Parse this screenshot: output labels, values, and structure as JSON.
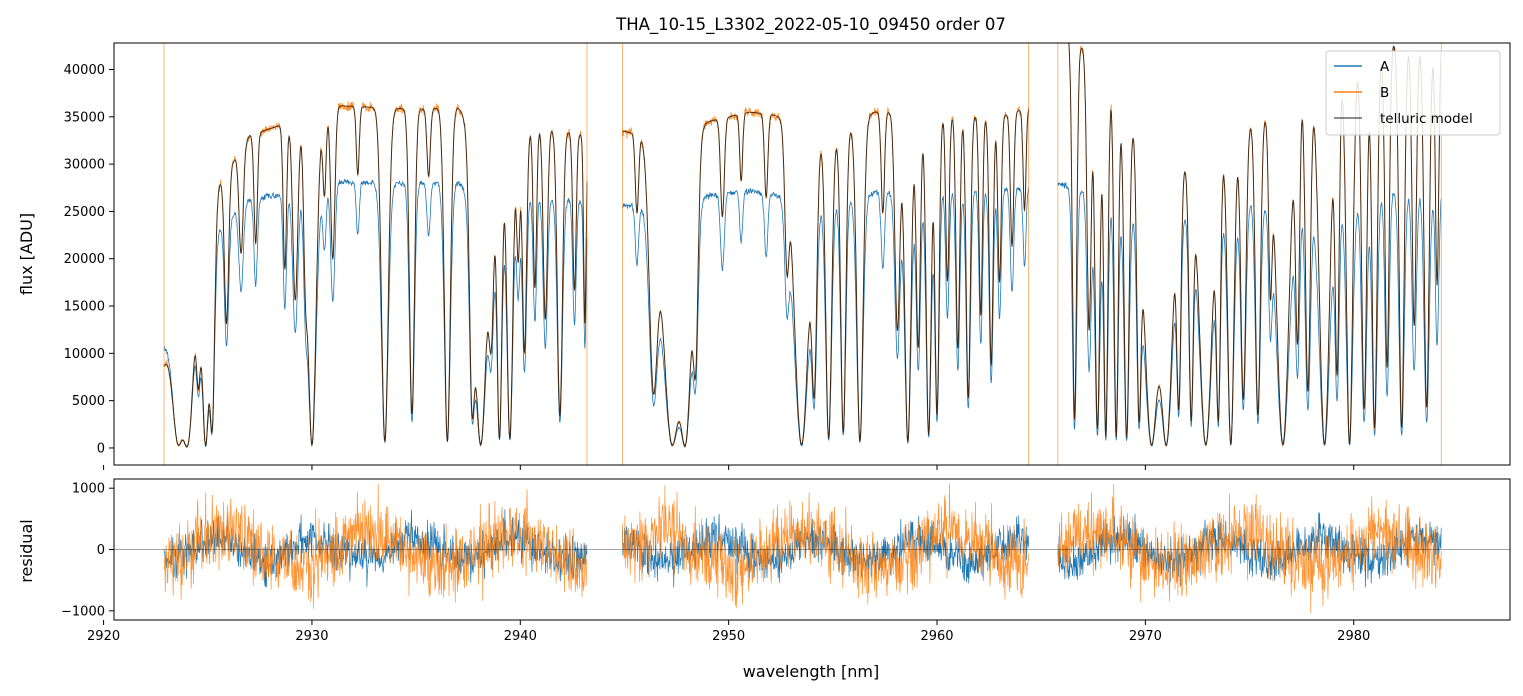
{
  "chart_data": {
    "type": "line",
    "title": "THA_10-15_L3302_2022-05-10_09450  order 07",
    "xlabel": "wavelength [nm]",
    "xlim": [
      2920.5,
      2987.5
    ],
    "xticks": [
      2920,
      2930,
      2940,
      2950,
      2960,
      2970,
      2980
    ],
    "segments": [
      [
        2922.9,
        2943.2
      ],
      [
        2944.9,
        2964.4
      ],
      [
        2965.8,
        2984.2
      ]
    ],
    "panels": [
      {
        "name": "spectrum",
        "ylabel": "flux [ADU]",
        "ylim": [
          -1800,
          42800
        ],
        "yticks": [
          0,
          5000,
          10000,
          15000,
          20000,
          25000,
          30000,
          35000,
          40000
        ],
        "legend": "upper right",
        "series": [
          {
            "name": "A",
            "color": "#1f77b4"
          },
          {
            "name": "B",
            "color": "#ff7f0e"
          },
          {
            "name": "telluric model",
            "color": "#000000"
          }
        ],
        "continuum_A": {
          "x": [
            2922.9,
            2925,
            2927,
            2929,
            2931,
            2933,
            2935,
            2937,
            2939,
            2941,
            2943.2,
            2944.9,
            2947,
            2949,
            2951,
            2953,
            2955,
            2957,
            2959,
            2961,
            2963,
            2964.4,
            2965.8,
            2968,
            2970,
            2972,
            2974,
            2976,
            2978,
            2980,
            2982,
            2984.2
          ],
          "y": [
            11000,
            22000,
            26200,
            27000,
            28200,
            28000,
            28000,
            28100,
            27000,
            26500,
            26000,
            25600,
            26000,
            26700,
            27200,
            26500,
            26300,
            27000,
            27300,
            27200,
            27300,
            27500,
            28000,
            26500,
            25500,
            25000,
            26000,
            26200,
            26500,
            26300,
            27200,
            27000
          ]
        },
        "continuum_B": {
          "x": [
            2922.9,
            2925,
            2927,
            2929,
            2931,
            2933,
            2935,
            2937,
            2939,
            2941,
            2943.2,
            2944.9,
            2947,
            2949,
            2951,
            2953,
            2955,
            2957,
            2959,
            2961,
            2963,
            2964.4,
            2965.8,
            2968,
            2970,
            2972,
            2974,
            2976,
            2978,
            2980,
            2982,
            2984.2
          ],
          "y": [
            9000,
            26000,
            33000,
            34500,
            36200,
            36000,
            35800,
            36000,
            33000,
            34000,
            33000,
            33500,
            32500,
            34500,
            35500,
            35000,
            33000,
            35500,
            35500,
            35200,
            35000,
            36000,
            45000,
            40000,
            34000,
            30000,
            33000,
            36000,
            40500,
            41000,
            43000,
            43000
          ]
        },
        "absorption_lines": [
          {
            "x": 2923.6,
            "w": 0.28,
            "d": 0.97
          },
          {
            "x": 2924.0,
            "w": 0.3,
            "d": 0.99
          },
          {
            "x": 2924.55,
            "w": 0.1,
            "d": 0.6
          },
          {
            "x": 2924.9,
            "w": 0.18,
            "d": 0.99
          },
          {
            "x": 2925.2,
            "w": 0.12,
            "d": 0.92
          },
          {
            "x": 2925.9,
            "w": 0.1,
            "d": 0.55
          },
          {
            "x": 2926.6,
            "w": 0.1,
            "d": 0.35
          },
          {
            "x": 2927.3,
            "w": 0.08,
            "d": 0.35
          },
          {
            "x": 2928.7,
            "w": 0.08,
            "d": 0.45
          },
          {
            "x": 2929.2,
            "w": 0.12,
            "d": 0.55
          },
          {
            "x": 2929.7,
            "w": 0.09,
            "d": 0.4
          },
          {
            "x": 2930.0,
            "w": 0.2,
            "d": 0.99
          },
          {
            "x": 2930.6,
            "w": 0.08,
            "d": 0.25
          },
          {
            "x": 2931.0,
            "w": 0.1,
            "d": 0.45
          },
          {
            "x": 2932.2,
            "w": 0.07,
            "d": 0.2
          },
          {
            "x": 2933.5,
            "w": 0.16,
            "d": 0.98
          },
          {
            "x": 2934.8,
            "w": 0.12,
            "d": 0.9
          },
          {
            "x": 2935.6,
            "w": 0.08,
            "d": 0.2
          },
          {
            "x": 2936.5,
            "w": 0.14,
            "d": 0.98
          },
          {
            "x": 2937.7,
            "w": 0.12,
            "d": 0.85
          },
          {
            "x": 2938.1,
            "w": 0.3,
            "d": 0.99
          },
          {
            "x": 2938.6,
            "w": 0.12,
            "d": 0.6
          },
          {
            "x": 2939.0,
            "w": 0.12,
            "d": 0.97
          },
          {
            "x": 2939.5,
            "w": 0.14,
            "d": 0.97
          },
          {
            "x": 2939.9,
            "w": 0.08,
            "d": 0.4
          },
          {
            "x": 2940.2,
            "w": 0.1,
            "d": 0.7
          },
          {
            "x": 2940.7,
            "w": 0.08,
            "d": 0.5
          },
          {
            "x": 2941.2,
            "w": 0.1,
            "d": 0.6
          },
          {
            "x": 2941.9,
            "w": 0.12,
            "d": 0.9
          },
          {
            "x": 2942.6,
            "w": 0.08,
            "d": 0.5
          },
          {
            "x": 2943.1,
            "w": 0.06,
            "d": 0.6
          },
          {
            "x": 2945.6,
            "w": 0.08,
            "d": 0.25
          },
          {
            "x": 2946.4,
            "w": 0.2,
            "d": 0.8
          },
          {
            "x": 2947.3,
            "w": 0.45,
            "d": 0.99
          },
          {
            "x": 2947.9,
            "w": 0.3,
            "d": 0.99
          },
          {
            "x": 2948.4,
            "w": 0.12,
            "d": 0.7
          },
          {
            "x": 2949.7,
            "w": 0.09,
            "d": 0.3
          },
          {
            "x": 2950.6,
            "w": 0.07,
            "d": 0.2
          },
          {
            "x": 2951.8,
            "w": 0.08,
            "d": 0.25
          },
          {
            "x": 2952.8,
            "w": 0.1,
            "d": 0.4
          },
          {
            "x": 2953.5,
            "w": 0.35,
            "d": 0.99
          },
          {
            "x": 2954.1,
            "w": 0.12,
            "d": 0.8
          },
          {
            "x": 2954.8,
            "w": 0.14,
            "d": 0.97
          },
          {
            "x": 2955.5,
            "w": 0.12,
            "d": 0.95
          },
          {
            "x": 2956.3,
            "w": 0.15,
            "d": 0.98
          },
          {
            "x": 2957.4,
            "w": 0.08,
            "d": 0.3
          },
          {
            "x": 2958.1,
            "w": 0.12,
            "d": 0.65
          },
          {
            "x": 2958.6,
            "w": 0.15,
            "d": 0.98
          },
          {
            "x": 2959.1,
            "w": 0.1,
            "d": 0.7
          },
          {
            "x": 2959.6,
            "w": 0.12,
            "d": 0.96
          },
          {
            "x": 2960.0,
            "w": 0.1,
            "d": 0.9
          },
          {
            "x": 2960.5,
            "w": 0.08,
            "d": 0.5
          },
          {
            "x": 2961.0,
            "w": 0.09,
            "d": 0.7
          },
          {
            "x": 2961.5,
            "w": 0.1,
            "d": 0.85
          },
          {
            "x": 2962.1,
            "w": 0.08,
            "d": 0.6
          },
          {
            "x": 2962.6,
            "w": 0.09,
            "d": 0.75
          },
          {
            "x": 2963.0,
            "w": 0.08,
            "d": 0.5
          },
          {
            "x": 2963.6,
            "w": 0.08,
            "d": 0.4
          },
          {
            "x": 2964.2,
            "w": 0.07,
            "d": 0.3
          },
          {
            "x": 2966.6,
            "w": 0.1,
            "d": 0.93
          },
          {
            "x": 2967.3,
            "w": 0.1,
            "d": 0.7
          },
          {
            "x": 2967.7,
            "w": 0.12,
            "d": 0.95
          },
          {
            "x": 2968.1,
            "w": 0.1,
            "d": 0.97
          },
          {
            "x": 2968.6,
            "w": 0.1,
            "d": 0.97
          },
          {
            "x": 2969.1,
            "w": 0.12,
            "d": 0.97
          },
          {
            "x": 2969.7,
            "w": 0.1,
            "d": 0.9
          },
          {
            "x": 2970.3,
            "w": 0.35,
            "d": 0.99
          },
          {
            "x": 2971.0,
            "w": 0.3,
            "d": 0.99
          },
          {
            "x": 2971.6,
            "w": 0.1,
            "d": 0.85
          },
          {
            "x": 2972.2,
            "w": 0.1,
            "d": 0.9
          },
          {
            "x": 2972.9,
            "w": 0.3,
            "d": 0.99
          },
          {
            "x": 2973.5,
            "w": 0.1,
            "d": 0.9
          },
          {
            "x": 2974.1,
            "w": 0.15,
            "d": 0.99
          },
          {
            "x": 2974.7,
            "w": 0.12,
            "d": 0.85
          },
          {
            "x": 2975.4,
            "w": 0.12,
            "d": 0.9
          },
          {
            "x": 2976.0,
            "w": 0.08,
            "d": 0.5
          },
          {
            "x": 2976.6,
            "w": 0.3,
            "d": 0.99
          },
          {
            "x": 2977.3,
            "w": 0.1,
            "d": 0.7
          },
          {
            "x": 2977.8,
            "w": 0.12,
            "d": 0.85
          },
          {
            "x": 2978.6,
            "w": 0.25,
            "d": 0.99
          },
          {
            "x": 2979.2,
            "w": 0.1,
            "d": 0.8
          },
          {
            "x": 2979.8,
            "w": 0.15,
            "d": 0.99
          },
          {
            "x": 2980.5,
            "w": 0.12,
            "d": 0.9
          },
          {
            "x": 2981.0,
            "w": 0.12,
            "d": 0.95
          },
          {
            "x": 2981.6,
            "w": 0.1,
            "d": 0.8
          },
          {
            "x": 2982.3,
            "w": 0.12,
            "d": 0.95
          },
          {
            "x": 2982.9,
            "w": 0.1,
            "d": 0.7
          },
          {
            "x": 2983.5,
            "w": 0.12,
            "d": 0.9
          },
          {
            "x": 2984.0,
            "w": 0.08,
            "d": 0.6
          }
        ]
      },
      {
        "name": "residual",
        "ylabel": "residual",
        "ylim": [
          -1150,
          1150
        ],
        "yticks": [
          -1000,
          0,
          1000
        ],
        "zero_line": true,
        "noise_amplitude": {
          "A": 250,
          "B": 420
        }
      }
    ]
  }
}
